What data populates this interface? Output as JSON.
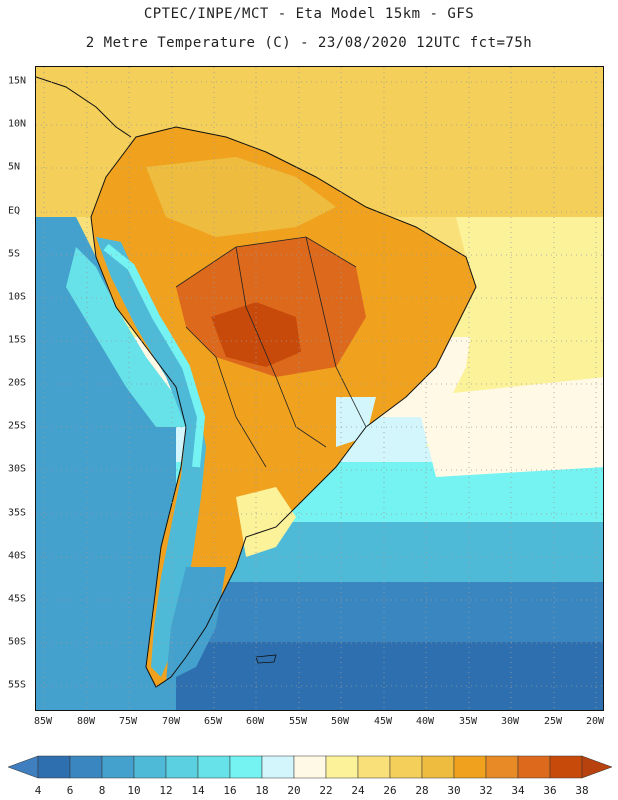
{
  "title_line1": "CPTEC/INPE/MCT -  Eta Model 15km - GFS",
  "title_line2": "2 Metre Temperature (C) - 23/08/2020 12UTC fct=75h",
  "lat_labels": [
    "15N",
    "10N",
    "5N",
    "EQ",
    "5S",
    "10S",
    "15S",
    "20S",
    "25S",
    "30S",
    "35S",
    "40S",
    "45S",
    "50S",
    "55S"
  ],
  "lon_labels": [
    "85W",
    "80W",
    "75W",
    "70W",
    "65W",
    "60W",
    "55W",
    "50W",
    "45W",
    "40W",
    "35W",
    "30W",
    "25W",
    "20W"
  ],
  "colorbar": {
    "labels": [
      "4",
      "6",
      "8",
      "10",
      "12",
      "14",
      "16",
      "18",
      "20",
      "22",
      "24",
      "26",
      "28",
      "30",
      "32",
      "34",
      "36",
      "38"
    ],
    "colors": {
      "below": "#3f7fbf",
      "c4_6": "#2e6fb0",
      "c6_8": "#3a86c0",
      "c8_10": "#44a0cc",
      "c10_12": "#4fb9d8",
      "c12_14": "#5bd0e0",
      "c14_16": "#66e2e8",
      "c16_18": "#74f3f2",
      "c18_20": "#d2f6fb",
      "c20_22": "#fff9e6",
      "c22_24": "#fcf29a",
      "c24_26": "#f9e079",
      "c26_28": "#f4cf5a",
      "c28_30": "#eebd3f",
      "c30_32": "#f0a21f",
      "c32_34": "#e88a25",
      "c34_36": "#dd6a1c",
      "c36_38": "#c84a0a",
      "above": "#b8420e"
    }
  }
}
